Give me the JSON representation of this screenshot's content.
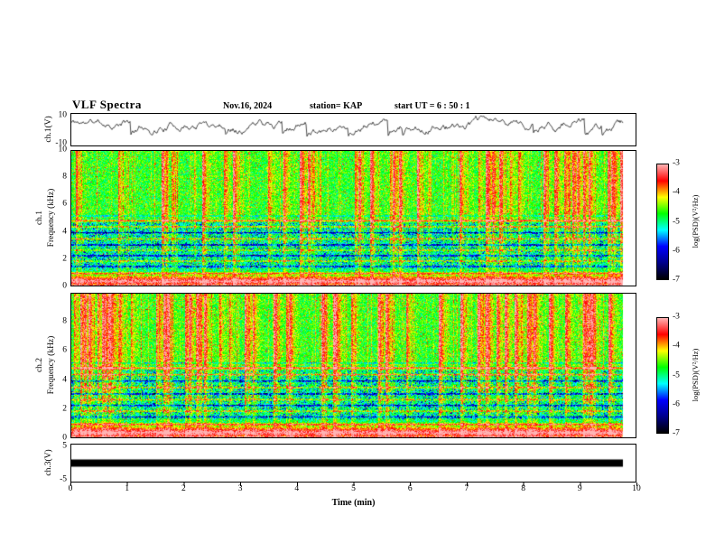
{
  "header": {
    "title": "VLF Spectra",
    "date": "Nov.16, 2024",
    "station": "station= KAP",
    "start_ut": "start UT =  6 : 50 : 1"
  },
  "xaxis": {
    "label": "Time (min)",
    "range": [
      0,
      10
    ],
    "ticks": {
      "labels": [
        "0",
        "1",
        "2",
        "3",
        "4",
        "5",
        "6",
        "7",
        "8",
        "9",
        "10"
      ]
    }
  },
  "colorbar": {
    "label": "log(PSD)(V²/Hz)",
    "clim": [
      -3,
      -7
    ],
    "ticks": {
      "labels": [
        "-3",
        "-4",
        "-5",
        "-6",
        "-7"
      ]
    },
    "stops_low_to_high": [
      "#000000",
      "#00008b",
      "#0000ff",
      "#00ffff",
      "#00ff00",
      "#ffff00",
      "#ff0000",
      "#ffb4b4"
    ]
  },
  "chart_data": [
    {
      "id": "ch1_waveform",
      "type": "line",
      "ylabel": "ch.1(V)",
      "ylim": [
        -10,
        10
      ],
      "yticks": {
        "labels": [
          "10",
          "-10"
        ],
        "fracs": [
          0.08,
          0.92
        ]
      },
      "xlim": [
        0,
        10
      ],
      "seed": 11,
      "summary": "Continuous noisy ch.1 voltage trace fluctuating mostly between about +2 V and +9 V with frequent sharp negative spikes; record ends near 9.8 min"
    },
    {
      "id": "ch1_spectrogram",
      "type": "heatmap",
      "channel": "ch.1",
      "ylabel": "Frequency (kHz)",
      "ylim": [
        0,
        10
      ],
      "yticks": {
        "labels": [
          "10",
          "8",
          "6",
          "4",
          "2",
          "0"
        ],
        "fracs": [
          0,
          0.2,
          0.4,
          0.6,
          0.8,
          1
        ]
      },
      "xlim": [
        0,
        10
      ],
      "value_label": "log(PSD)(V²/Hz)",
      "value_range": [
        -7,
        -3
      ],
      "seed": 20241116,
      "summary": "0-10 kHz VLF spectrogram: green/yellow broadband background crossed by dense red vertical sferic streaks, an intense red band below ~1 kHz, and alternating narrow yellow emission and dark blue absorption lines between ~1 and 5 kHz"
    },
    {
      "id": "ch2_spectrogram",
      "type": "heatmap",
      "channel": "ch.2",
      "ylabel": "Frequency (kHz)",
      "ylim": [
        0,
        10
      ],
      "yticks": {
        "labels": [
          "8",
          "6",
          "4",
          "2",
          "0"
        ],
        "fracs": [
          0.2,
          0.4,
          0.6,
          0.8,
          1
        ]
      },
      "xlim": [
        0,
        10
      ],
      "value_label": "log(PSD)(V²/Hz)",
      "value_range": [
        -7,
        -3
      ],
      "seed": 6501,
      "summary": "Same structure as ch.1 spectrogram: red sferic streaks over green background, strong low-frequency band below ~1 kHz and banded horizontal lines between 1 and 5 kHz"
    },
    {
      "id": "ch3_waveform",
      "type": "line",
      "ylabel": "ch.3(V)",
      "ylim": [
        -5,
        5
      ],
      "yticks": {
        "labels": [
          "5",
          "-5"
        ],
        "fracs": [
          0.08,
          0.92
        ]
      },
      "xlim": [
        0,
        10
      ],
      "seed": 7,
      "summary": "ch.3 trace saturated into a solid thick black band around 0 V for the entire record"
    }
  ]
}
